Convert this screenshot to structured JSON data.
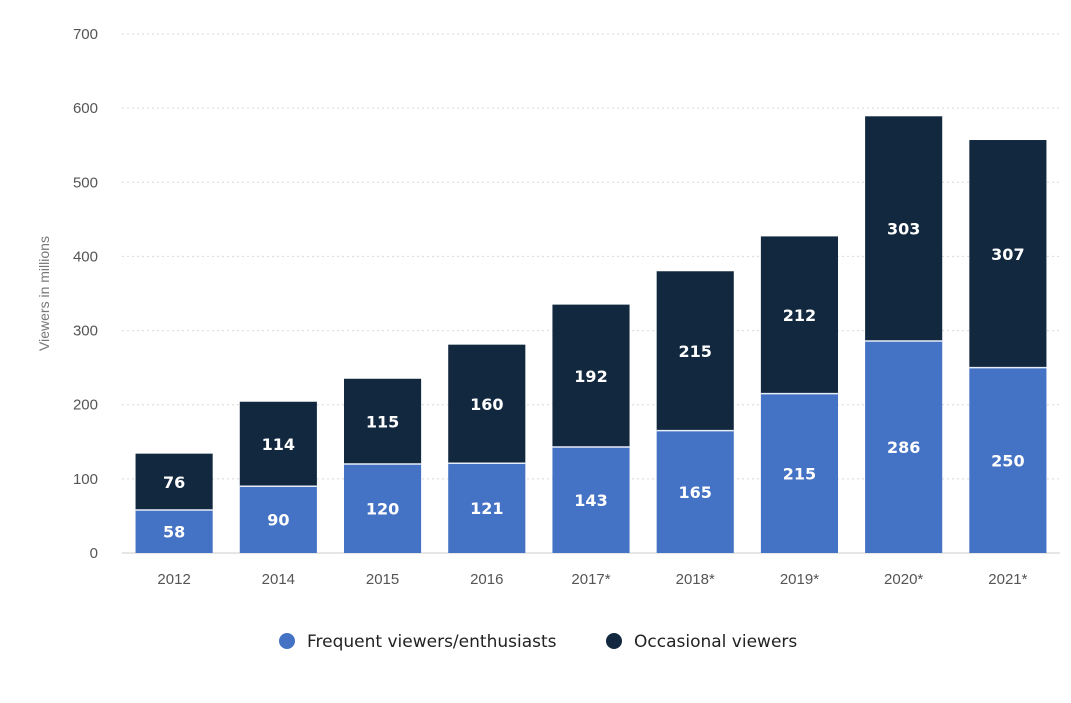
{
  "chart_data": {
    "type": "bar",
    "stacked": true,
    "categories": [
      "2012",
      "2014",
      "2015",
      "2016",
      "2017*",
      "2018*",
      "2019*",
      "2020*",
      "2021*"
    ],
    "series": [
      {
        "name": "Frequent viewers/enthusiasts",
        "color": "#4472c4",
        "values": [
          58,
          90,
          120,
          121,
          143,
          165,
          215,
          286,
          250
        ]
      },
      {
        "name": "Occasional viewers",
        "color": "#11283f",
        "values": [
          76,
          114,
          115,
          160,
          192,
          215,
          212,
          303,
          307
        ]
      }
    ],
    "xlabel": "",
    "ylabel": "Viewers in millions",
    "ylim": [
      0,
      700
    ],
    "yticks": [
      0,
      100,
      200,
      300,
      400,
      500,
      600,
      700
    ],
    "grid": true,
    "legend_position": "bottom"
  }
}
